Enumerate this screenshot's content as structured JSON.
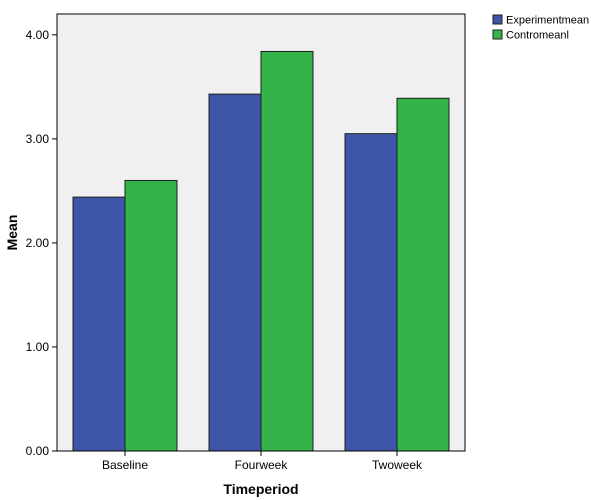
{
  "chart_data": {
    "type": "bar",
    "title": "",
    "xlabel": "Timeperiod",
    "ylabel": "Mean",
    "categories": [
      "Baseline",
      "Fourweek",
      "Twoweek"
    ],
    "series": [
      {
        "name": "Experimentmean",
        "values": [
          2.44,
          3.43,
          3.05
        ],
        "color": "#3f56a8"
      },
      {
        "name": "Contromeanl",
        "values": [
          2.6,
          3.84,
          3.39
        ],
        "color": "#34b34a"
      }
    ],
    "ylim": [
      0,
      4.2
    ],
    "yticks": [
      0.0,
      1.0,
      2.0,
      3.0,
      4.0
    ],
    "ytick_labels": [
      "0.00",
      "1.00",
      "2.00",
      "3.00",
      "4.00"
    ],
    "grid": false,
    "plot_background": "#f0f0f0",
    "bar_outline": "#1f1f1f",
    "legend_position": "top-right, outside plot"
  }
}
